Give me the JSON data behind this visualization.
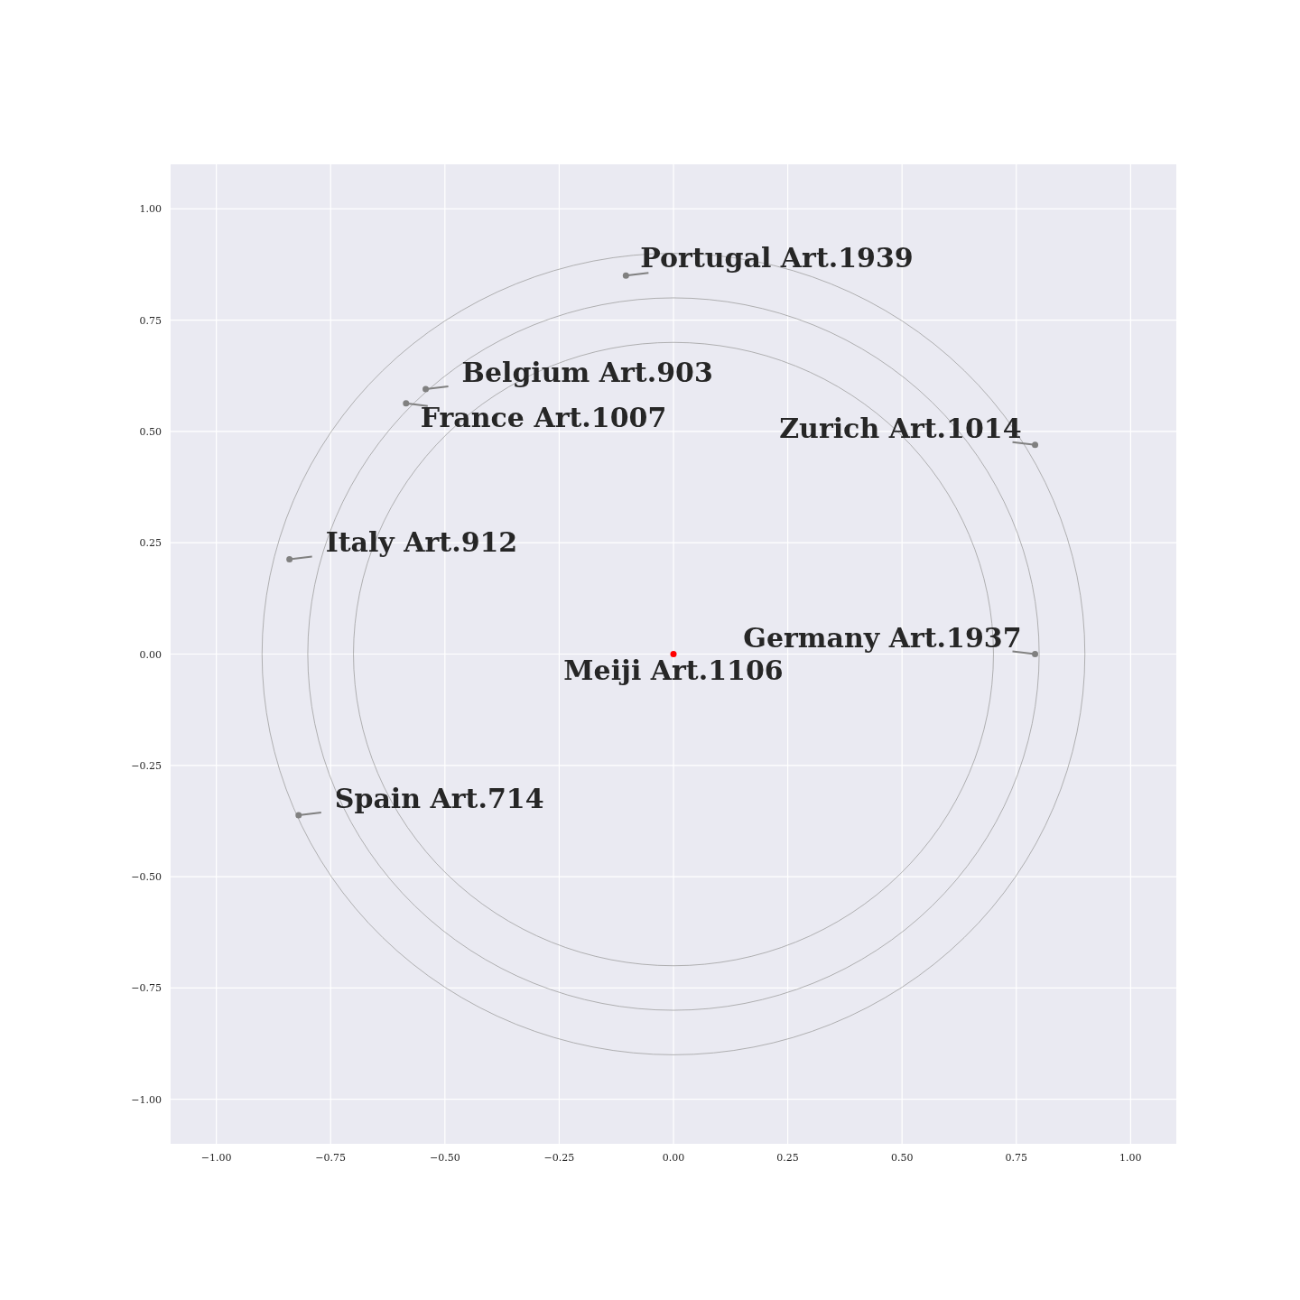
{
  "chart_data": {
    "type": "scatter",
    "xlim": [
      -1.1,
      1.1
    ],
    "ylim": [
      -1.1,
      1.1
    ],
    "xticks": [
      {
        "value": -1,
        "label": "−1.00"
      },
      {
        "value": -0.75,
        "label": "−0.75"
      },
      {
        "value": -0.5,
        "label": "−0.50"
      },
      {
        "value": -0.25,
        "label": "−0.25"
      },
      {
        "value": 0,
        "label": "0.00"
      },
      {
        "value": 0.25,
        "label": "0.25"
      },
      {
        "value": 0.5,
        "label": "0.50"
      },
      {
        "value": 0.75,
        "label": "0.75"
      },
      {
        "value": 1,
        "label": "1.00"
      }
    ],
    "yticks": [
      {
        "value": -1,
        "label": "−1.00"
      },
      {
        "value": -0.75,
        "label": "−0.75"
      },
      {
        "value": -0.5,
        "label": "−0.50"
      },
      {
        "value": -0.25,
        "label": "−0.25"
      },
      {
        "value": 0,
        "label": "0.00"
      },
      {
        "value": 0.25,
        "label": "0.25"
      },
      {
        "value": 0.5,
        "label": "0.50"
      },
      {
        "value": 0.75,
        "label": "0.75"
      },
      {
        "value": 1,
        "label": "1.00"
      }
    ],
    "grid": true,
    "series": [
      {
        "color": "#808080",
        "marker": "circle",
        "x": [
          -0.104,
          -0.542,
          -0.585,
          0.791,
          -0.84,
          0.791,
          -0.82
        ],
        "values": [
          0.85,
          0.595,
          0.563,
          0.47,
          0.213,
          0,
          -0.362
        ]
      },
      {
        "color": "#ff0000",
        "marker": "circle",
        "x": [
          0
        ],
        "values": [
          0
        ]
      }
    ],
    "annotations": [
      {
        "text": "Portugal Art.1939",
        "x": -0.104,
        "y": 0.85
      },
      {
        "text": "Belgium Art.903",
        "x": -0.542,
        "y": 0.595
      },
      {
        "text": "France Art.1007",
        "x": -0.585,
        "y": 0.563
      },
      {
        "text": "Zurich Art.1014",
        "x": 0.791,
        "y": 0.47
      },
      {
        "text": "Italy Art.912",
        "x": -0.84,
        "y": 0.213
      },
      {
        "text": "Germany Art.1937",
        "x": 0.791,
        "y": 0
      },
      {
        "text": "Spain Art.714",
        "x": -0.82,
        "y": -0.362
      },
      {
        "text": "Meiji Art.1106",
        "x": 0,
        "y": 0
      }
    ]
  }
}
